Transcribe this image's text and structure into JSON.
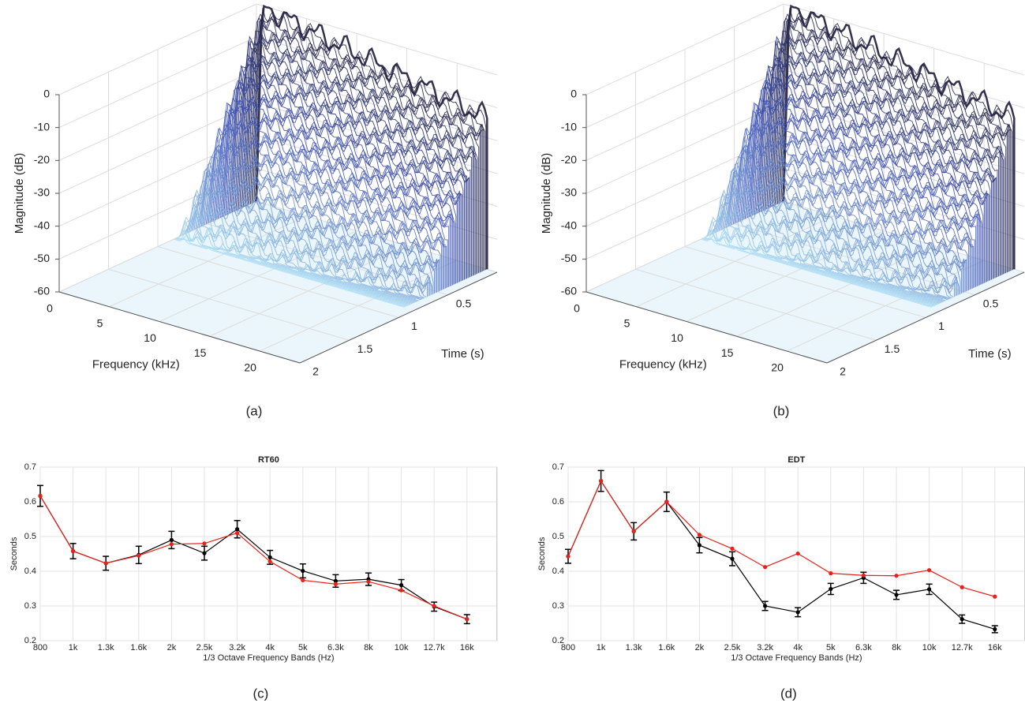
{
  "chart_data": [
    {
      "type": "waterfall",
      "caption": "(a)",
      "xlabel": "Frequency (kHz)",
      "ylabel": "Time (s)",
      "zlabel": "Magnitude (dB)",
      "xlim": [
        0,
        24
      ],
      "xticks": [
        0,
        5,
        10,
        15,
        20
      ],
      "ylim": [
        0,
        2
      ],
      "yticks": [
        0.5,
        1,
        1.5,
        2
      ],
      "zlim": [
        -60,
        0
      ],
      "zticks": [
        -60,
        -50,
        -40,
        -30,
        -20,
        -10,
        0
      ]
    },
    {
      "type": "waterfall",
      "caption": "(b)",
      "xlabel": "Frequency (kHz)",
      "ylabel": "Time (s)",
      "zlabel": "Magnitude (dB)",
      "xlim": [
        0,
        24
      ],
      "xticks": [
        0,
        5,
        10,
        15,
        20
      ],
      "ylim": [
        0,
        2
      ],
      "yticks": [
        0.5,
        1,
        1.5,
        2
      ],
      "zlim": [
        -60,
        0
      ],
      "zticks": [
        -60,
        -50,
        -40,
        -30,
        -20,
        -10,
        0
      ]
    },
    {
      "type": "line",
      "title": "RT60",
      "caption": "(c)",
      "xlabel": "1/3 Octave Frequency Bands (Hz)",
      "ylabel": "Seconds",
      "categories": [
        "800",
        "1k",
        "1.3k",
        "1.6k",
        "2k",
        "2.5k",
        "3.2k",
        "4k",
        "5k",
        "6.3k",
        "8k",
        "10k",
        "12.7k",
        "16k"
      ],
      "ylim": [
        0.2,
        0.7
      ],
      "yticks": [
        0.2,
        0.3,
        0.4,
        0.5,
        0.6,
        0.7
      ],
      "grid": true,
      "series": [
        {
          "color": "#000000",
          "values": [
            0.617,
            0.458,
            0.423,
            0.447,
            0.49,
            0.452,
            0.521,
            0.44,
            0.401,
            0.372,
            0.377,
            0.36,
            0.298,
            0.262
          ],
          "errors": [
            0.03,
            0.022,
            0.02,
            0.025,
            0.025,
            0.02,
            0.025,
            0.02,
            0.02,
            0.018,
            0.018,
            0.016,
            0.013,
            0.013
          ]
        },
        {
          "color": "#e8211a",
          "values": [
            0.617,
            0.458,
            0.423,
            0.445,
            0.478,
            0.48,
            0.51,
            0.428,
            0.374,
            0.363,
            0.37,
            0.345,
            0.3,
            0.262
          ]
        }
      ]
    },
    {
      "type": "line",
      "title": "EDT",
      "caption": "(d)",
      "xlabel": "1/3 Octave Frequency Bands (Hz)",
      "ylabel": "Seconds",
      "categories": [
        "800",
        "1k",
        "1.3k",
        "1.6k",
        "2k",
        "2.5k",
        "3.2k",
        "4k",
        "5k",
        "6.3k",
        "8k",
        "10k",
        "12.7k",
        "16k"
      ],
      "ylim": [
        0.2,
        0.7
      ],
      "yticks": [
        0.2,
        0.3,
        0.4,
        0.5,
        0.6,
        0.7
      ],
      "grid": true,
      "series": [
        {
          "color": "#000000",
          "values": [
            0.443,
            0.66,
            0.515,
            0.6,
            0.475,
            0.436,
            0.3,
            0.282,
            0.349,
            0.381,
            0.332,
            0.348,
            0.262,
            0.233
          ],
          "errors": [
            0.02,
            0.03,
            0.025,
            0.028,
            0.022,
            0.02,
            0.013,
            0.013,
            0.016,
            0.016,
            0.013,
            0.015,
            0.012,
            0.01
          ]
        },
        {
          "color": "#e8211a",
          "values": [
            0.443,
            0.66,
            0.515,
            0.6,
            0.505,
            0.465,
            0.412,
            0.451,
            0.394,
            0.388,
            0.387,
            0.403,
            0.354,
            0.327
          ]
        }
      ]
    }
  ]
}
